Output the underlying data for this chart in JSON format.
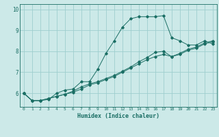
{
  "xlabel": "Humidex (Indice chaleur)",
  "ylabel": "",
  "bg_color": "#cce9e8",
  "grid_color": "#9ecece",
  "line_color": "#1a6e64",
  "xlim": [
    -0.5,
    23.5
  ],
  "ylim": [
    5.35,
    10.25
  ],
  "xticks": [
    0,
    1,
    2,
    3,
    4,
    5,
    6,
    7,
    8,
    9,
    10,
    11,
    12,
    13,
    14,
    15,
    16,
    17,
    18,
    19,
    20,
    21,
    22,
    23
  ],
  "yticks": [
    6,
    7,
    8,
    9,
    10
  ],
  "line1_x": [
    0,
    1,
    2,
    3,
    4,
    5,
    6,
    7,
    8,
    9,
    10,
    11,
    12,
    13,
    14,
    15,
    16,
    17,
    18,
    19,
    20,
    21,
    22,
    23
  ],
  "line1_y": [
    6.0,
    5.65,
    5.65,
    5.7,
    6.0,
    6.15,
    6.2,
    6.55,
    6.55,
    7.15,
    7.9,
    8.5,
    9.15,
    9.55,
    9.65,
    9.65,
    9.65,
    9.7,
    8.65,
    8.5,
    8.3,
    8.3,
    8.5,
    8.35
  ],
  "line2_x": [
    0,
    1,
    2,
    3,
    4,
    5,
    6,
    7,
    8,
    9,
    10,
    11,
    12,
    13,
    14,
    15,
    16,
    17,
    18,
    19,
    20,
    21,
    22,
    23
  ],
  "line2_y": [
    6.0,
    5.65,
    5.65,
    5.75,
    5.85,
    5.95,
    6.1,
    6.3,
    6.45,
    6.55,
    6.7,
    6.85,
    7.05,
    7.25,
    7.5,
    7.7,
    7.95,
    8.0,
    7.75,
    7.85,
    8.05,
    8.15,
    8.35,
    8.45
  ],
  "line3_x": [
    0,
    1,
    2,
    3,
    4,
    5,
    6,
    7,
    8,
    9,
    10,
    11,
    12,
    13,
    14,
    15,
    16,
    17,
    18,
    19,
    20,
    21,
    22,
    23
  ],
  "line3_y": [
    6.0,
    5.65,
    5.65,
    5.75,
    5.85,
    5.95,
    6.05,
    6.2,
    6.4,
    6.5,
    6.65,
    6.8,
    7.0,
    7.2,
    7.4,
    7.6,
    7.75,
    7.85,
    7.75,
    7.9,
    8.1,
    8.2,
    8.4,
    8.5
  ]
}
